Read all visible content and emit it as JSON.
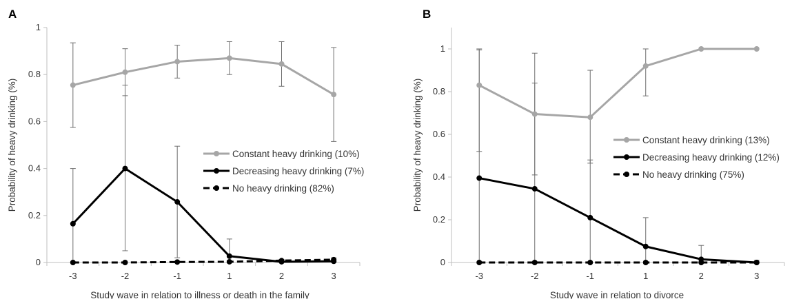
{
  "colors": {
    "constant": "#a6a6a6",
    "decreasing": "#000000",
    "none": "#000000",
    "axis": "#bfbfbf",
    "text": "#333333"
  },
  "chart_data": [
    {
      "panel_label": "A",
      "type": "line",
      "xlabel": "Study wave in relation to illness or death in the family",
      "ylabel": "Probability of heavy drinking (%)",
      "categories": [
        "-3",
        "-2",
        "-1",
        "1",
        "2",
        "3"
      ],
      "ylim": [
        0,
        1
      ],
      "yticks": [
        "0",
        "0.2",
        "0.4",
        "0.6",
        "0.8",
        "1"
      ],
      "grid": false,
      "legend_position": "right",
      "series": [
        {
          "name": "Constant heavy drinking (10%)",
          "style": "solid",
          "color_key": "constant",
          "values": [
            0.755,
            0.81,
            0.855,
            0.87,
            0.845,
            0.715
          ],
          "lower": [
            0.575,
            0.71,
            0.785,
            0.8,
            0.75,
            0.515
          ],
          "upper": [
            0.935,
            0.91,
            0.925,
            0.94,
            0.94,
            0.915
          ]
        },
        {
          "name": "Decreasing heavy drinking (7%)",
          "style": "solid",
          "color_key": "decreasing",
          "values": [
            0.165,
            0.4,
            0.258,
            0.027,
            0.003,
            0.005
          ],
          "lower": [
            0.0,
            0.05,
            0.02,
            0.0,
            0.0,
            0.0
          ],
          "upper": [
            0.4,
            0.755,
            0.495,
            0.1,
            0.01,
            0.01
          ]
        },
        {
          "name": "No heavy drinking (82%)",
          "style": "dashed",
          "color_key": "none",
          "values": [
            0.0,
            0.0,
            0.002,
            0.003,
            0.008,
            0.012
          ],
          "lower": [
            0.0,
            0.0,
            0.0,
            0.0,
            0.003,
            0.005
          ],
          "upper": [
            0.0,
            0.0,
            0.005,
            0.007,
            0.013,
            0.02
          ]
        }
      ]
    },
    {
      "panel_label": "B",
      "type": "line",
      "xlabel": "Study wave in relation to divorce",
      "ylabel": "Probability of heavy drinking (%)",
      "categories": [
        "-3",
        "-2",
        "-1",
        "1",
        "2",
        "3"
      ],
      "ylim": [
        0,
        1.1
      ],
      "yticks": [
        "0",
        "0.2",
        "0.4",
        "0.6",
        "0.8",
        "1"
      ],
      "grid": false,
      "legend_position": "right",
      "series": [
        {
          "name": "Constant heavy drinking (13%)",
          "style": "solid",
          "color_key": "constant",
          "values": [
            0.83,
            0.695,
            0.68,
            0.92,
            1.0,
            1.0
          ],
          "lower": [
            0.52,
            0.41,
            0.465,
            0.78,
            1.0,
            1.0
          ],
          "upper": [
            1.0,
            0.98,
            0.9,
            1.0,
            1.0,
            1.0
          ]
        },
        {
          "name": "Decreasing heavy drinking (12%)",
          "style": "solid",
          "color_key": "decreasing",
          "values": [
            0.395,
            0.345,
            0.21,
            0.075,
            0.015,
            0.0
          ],
          "lower": [
            0.0,
            0.0,
            0.0,
            0.0,
            0.0,
            0.0
          ],
          "upper": [
            0.995,
            0.84,
            0.48,
            0.21,
            0.08,
            0.01
          ]
        },
        {
          "name": "No heavy drinking (75%)",
          "style": "dashed",
          "color_key": "none",
          "values": [
            0.0,
            0.0,
            0.0,
            0.0,
            0.0,
            0.0
          ],
          "lower": [
            0.0,
            0.0,
            0.0,
            0.0,
            0.0,
            0.0
          ],
          "upper": [
            0.0,
            0.0,
            0.0,
            0.0,
            0.0,
            0.0
          ]
        }
      ]
    }
  ]
}
